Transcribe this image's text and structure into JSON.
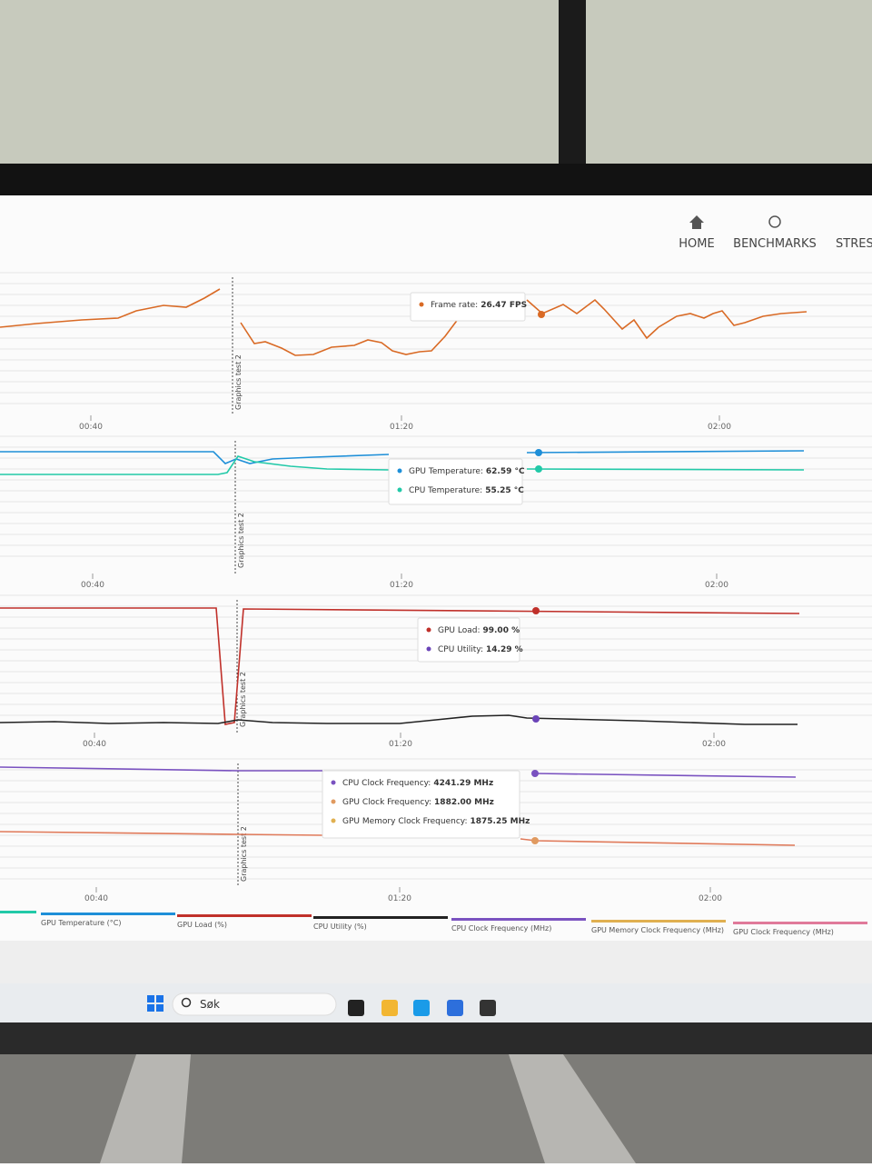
{
  "nav": {
    "items": [
      "HOME",
      "BENCHMARKS",
      "STRESS"
    ]
  },
  "panels": [
    {
      "marker": "Graphics test 2",
      "time_labels": [
        "00:40",
        "01:20",
        "02:00"
      ],
      "tooltip": [
        {
          "label": "Frame rate:",
          "value": "26.47 FPS"
        }
      ]
    },
    {
      "marker": "Graphics test 2",
      "time_labels": [
        "00:40",
        "01:20",
        "02:00"
      ],
      "tooltip": [
        {
          "label": "GPU Temperature:",
          "value": "62.59 °C"
        },
        {
          "label": "CPU Temperature:",
          "value": "55.25 °C"
        }
      ]
    },
    {
      "marker": "Graphics test 2",
      "time_labels": [
        "00:40",
        "01:20",
        "02:00"
      ],
      "tooltip": [
        {
          "label": "GPU Load:",
          "value": "99.00 %"
        },
        {
          "label": "CPU Utility:",
          "value": "14.29 %"
        }
      ]
    },
    {
      "marker": "Graphics test 2",
      "time_labels": [
        "00:40",
        "01:20",
        "02:00"
      ],
      "tooltip": [
        {
          "label": "CPU Clock Frequency:",
          "value": "4241.29 MHz"
        },
        {
          "label": "GPU Clock Frequency:",
          "value": "1882.00 MHz"
        },
        {
          "label": "GPU Memory Clock Frequency:",
          "value": "1875.25 MHz"
        }
      ]
    }
  ],
  "legend": [
    "GPU Temperature (°C)",
    "GPU Load (%)",
    "CPU Utility (%)",
    "CPU Clock Frequency (MHz)",
    "GPU Memory Clock Frequency (MHz)",
    "GPU Clock Frequency (MHz)"
  ],
  "taskbar": {
    "search": "Søk"
  }
}
